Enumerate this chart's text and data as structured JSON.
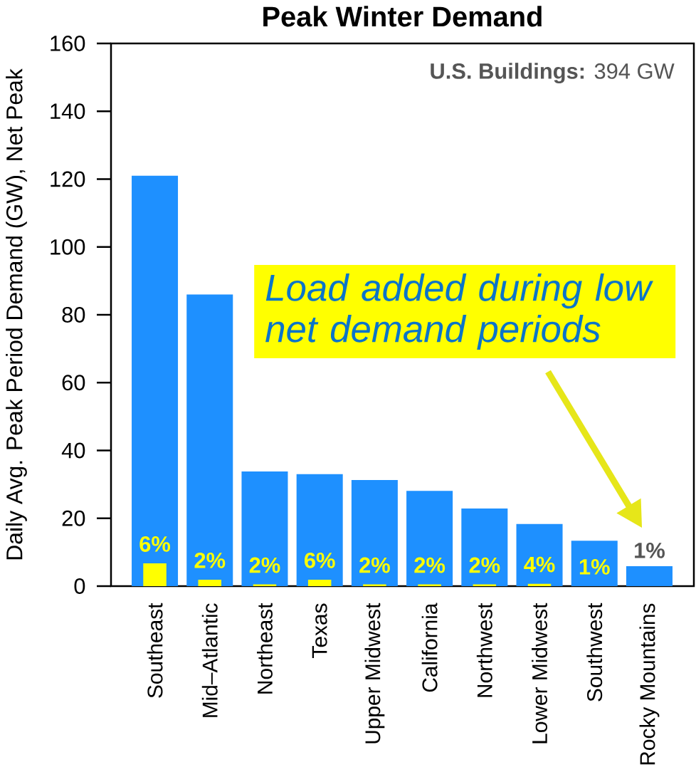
{
  "chart_data": {
    "type": "bar",
    "title": "Peak Winter Demand",
    "ylabel": "Daily Avg. Peak Period Demand (GW), Net Peak",
    "categories": [
      "Southeast",
      "Mid–Atlantic",
      "Northeast",
      "Texas",
      "Upper Midwest",
      "California",
      "Northwest",
      "Lower Midwest",
      "Southwest",
      "Rocky Mountains"
    ],
    "series": [
      {
        "color": "#1e90ff",
        "values": [
          121,
          86,
          33.8,
          33,
          31.3,
          28.1,
          22.9,
          18.3,
          13.4,
          5.9
        ]
      },
      {
        "color": "#ffff00",
        "values": [
          6.7,
          1.9,
          0.5,
          1.9,
          0.5,
          0.5,
          0.5,
          0.7,
          null,
          null
        ]
      }
    ],
    "ylim": [
      0,
      160
    ],
    "yticks": [
      0,
      20,
      40,
      60,
      80,
      100,
      120,
      140,
      160
    ],
    "annotations": [
      "**U.S. Buildings:** 394 GW",
      "Load added during low net demand periods",
      {
        "text": "6%",
        "x": "Southeast",
        "y": 6.7
      },
      {
        "text": "2%",
        "x": "Mid–Atlantic",
        "y": 1.9
      },
      {
        "text": "2%",
        "x": "Northeast",
        "y": 0.5
      },
      {
        "text": "6%",
        "x": "Texas",
        "y": 1.9
      },
      {
        "text": "2%",
        "x": "Upper Midwest",
        "y": 0.5
      },
      {
        "text": "2%",
        "x": "California",
        "y": 0.5
      },
      {
        "text": "2%",
        "x": "Northwest",
        "y": 0.5
      },
      {
        "text": "4%",
        "x": "Lower Midwest",
        "y": 0.7
      },
      {
        "text": "1%",
        "x": "Southwest",
        "y": 0
      },
      {
        "text": "1%",
        "x": "Rocky Mountains",
        "y": 5.9
      }
    ]
  }
}
